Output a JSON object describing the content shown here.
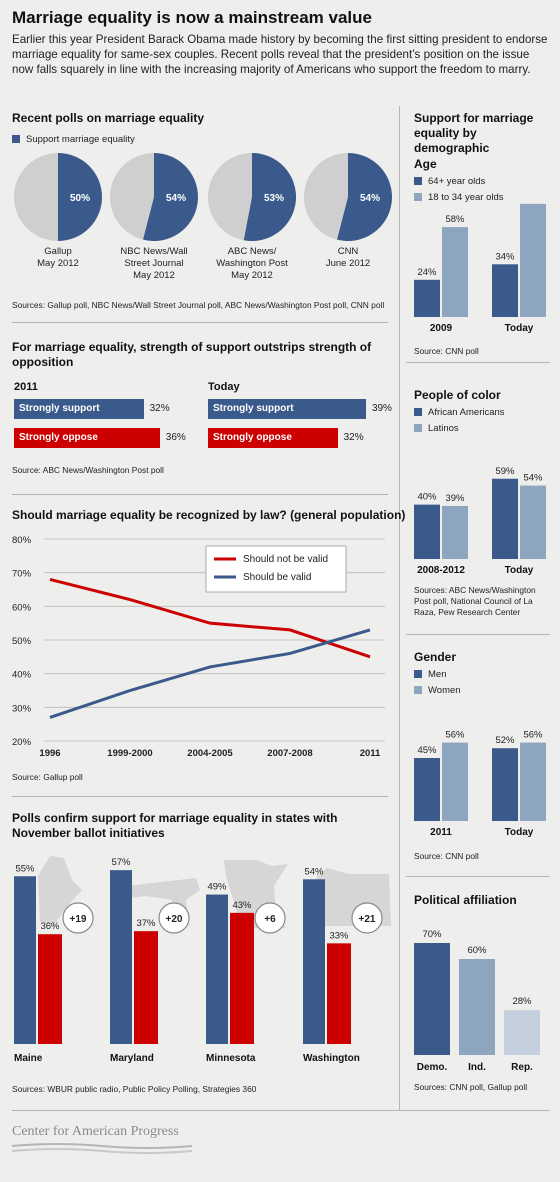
{
  "title": "Marriage equality is now a mainstream value",
  "intro": "Earlier this year President Barack Obama made history by becoming the first sitting president to endorse marriage equality for same-sex couples. Recent polls reveal that the president’s position on the issue now falls squarely in line with the increasing majority of Americans who support the freedom to marry.",
  "colors": {
    "blue": "#3b5a8c",
    "lightblue": "#8ea5c0",
    "red": "#cc0000",
    "gray": "#cfcfcf",
    "paleblue": "#c5d0de"
  },
  "polls": {
    "heading": "Recent polls on marriage equality",
    "legend": "Support marriage equality",
    "source": "Sources: Gallup poll, NBC News/Wall Street Journal poll, ABC News/Washington Post poll, CNN poll",
    "chart_data": {
      "type": "pie",
      "items": [
        {
          "pollster": "Gallup",
          "date": "May 2012",
          "value": 50,
          "label": "50%"
        },
        {
          "pollster": "NBC News/Wall Street Journal",
          "date": "May 2012",
          "value": 54,
          "label": "54%"
        },
        {
          "pollster": "ABC News/ Washington Post",
          "date": "May 2012",
          "value": 53,
          "label": "53%"
        },
        {
          "pollster": "CNN",
          "date": "June 2012",
          "value": 54,
          "label": "54%"
        }
      ]
    }
  },
  "strength": {
    "heading": "For marriage equality, strength of support outstrips strength of opposition",
    "source": "Source: ABC News/Washington Post poll",
    "chart_data": {
      "type": "bar",
      "groups": [
        {
          "period": "2011",
          "bars": [
            {
              "label": "Strongly support",
              "value": 32,
              "text": "32%"
            },
            {
              "label": "Strongly oppose",
              "value": 36,
              "text": "36%"
            }
          ]
        },
        {
          "period": "Today",
          "bars": [
            {
              "label": "Strongly support",
              "value": 39,
              "text": "39%"
            },
            {
              "label": "Strongly oppose",
              "value": 32,
              "text": "32%"
            }
          ]
        }
      ]
    }
  },
  "law": {
    "heading": "Should marriage equality be recognized by law? (general population)",
    "source": "Source: Gallup poll",
    "chart_data": {
      "type": "line",
      "x": [
        "1996",
        "1999-2000",
        "2004-2005",
        "2007-2008",
        "2011"
      ],
      "yticks": [
        "20%",
        "30%",
        "40%",
        "50%",
        "60%",
        "70%",
        "80%"
      ],
      "ylim": [
        20,
        80
      ],
      "series": [
        {
          "name": "Should not be valid",
          "values": [
            68,
            62,
            55,
            53,
            45
          ]
        },
        {
          "name": "Should be valid",
          "values": [
            27,
            35,
            42,
            46,
            53
          ]
        }
      ]
    }
  },
  "states": {
    "heading": "Polls confirm support for marriage equality in states with November ballot initiatives",
    "source": "Sources: WBUR public radio, Public Policy Polling, Strategies 360",
    "chart_data": {
      "type": "bar",
      "items": [
        {
          "state": "Maine",
          "support": 55,
          "oppose": 36,
          "support_text": "55%",
          "oppose_text": "36%",
          "diff": "+19"
        },
        {
          "state": "Maryland",
          "support": 57,
          "oppose": 37,
          "support_text": "57%",
          "oppose_text": "37%",
          "diff": "+20"
        },
        {
          "state": "Minnesota",
          "support": 49,
          "oppose": 43,
          "support_text": "49%",
          "oppose_text": "43%",
          "diff": "+6"
        },
        {
          "state": "Washington",
          "support": 54,
          "oppose": 33,
          "support_text": "54%",
          "oppose_text": "33%",
          "diff": "+21"
        }
      ]
    }
  },
  "demo": {
    "heading": "Support for marriage equality by demographic",
    "age": {
      "heading": "Age",
      "legend": [
        "64+ year olds",
        "18 to 34 year olds"
      ],
      "source": "Source: CNN poll",
      "chart_data": {
        "type": "bar",
        "categories": [
          "2009",
          "Today"
        ],
        "series": [
          {
            "name": "64+ year olds",
            "values": [
              24,
              34
            ]
          },
          {
            "name": "18 to 34 year olds",
            "values": [
              58,
              73
            ]
          }
        ]
      }
    },
    "color": {
      "heading": "People of color",
      "legend": [
        "African Americans",
        "Latinos"
      ],
      "source": "Sources: ABC News/Washington Post poll, National Council of La Raza, Pew Research Center",
      "chart_data": {
        "type": "bar",
        "categories": [
          "2008-2012",
          "Today"
        ],
        "series": [
          {
            "name": "African Americans",
            "values": [
              40,
              59
            ]
          },
          {
            "name": "Latinos",
            "values": [
              39,
              54
            ]
          }
        ]
      }
    },
    "gender": {
      "heading": "Gender",
      "legend": [
        "Men",
        "Women"
      ],
      "source": "Source: CNN poll",
      "chart_data": {
        "type": "bar",
        "categories": [
          "2011",
          "Today"
        ],
        "series": [
          {
            "name": "Men",
            "values": [
              45,
              52
            ]
          },
          {
            "name": "Women",
            "values": [
              56,
              56
            ]
          }
        ]
      }
    },
    "political": {
      "heading": "Political affiliation",
      "source": "Sources: CNN poll, Gallup poll",
      "chart_data": {
        "type": "bar",
        "categories": [
          "Demo.",
          "Ind.",
          "Rep."
        ],
        "values": [
          70,
          60,
          28
        ]
      }
    }
  },
  "footer": {
    "org": "Center for American Progress"
  }
}
